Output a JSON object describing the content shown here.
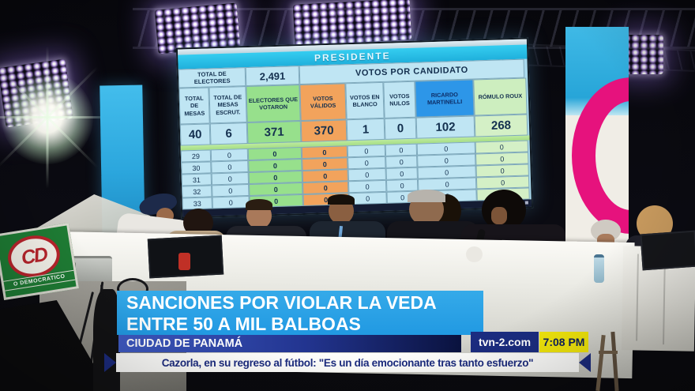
{
  "projection": {
    "title": "PRESIDENTE",
    "subtitle": "VOTOS POR CANDIDATO",
    "total_electores_label": "TOTAL DE ELECTORES",
    "total_electores_value": "2,491",
    "columns": [
      "TOTAL DE MESAS",
      "TOTAL DE MESAS ESCRUT.",
      "ELECTORES QUE VOTARON",
      "VOTOS VÁLIDOS",
      "VOTOS EN BLANCO",
      "VOTOS NULOS",
      "RICARDO MARTINELLI",
      "RÓMULO ROUX"
    ],
    "totals_row": [
      "40",
      "6",
      "371",
      "370",
      "1",
      "0",
      "102",
      "268"
    ],
    "detail_rows": [
      [
        "29",
        "0",
        "0",
        "0",
        "0",
        "0",
        "0",
        "0"
      ],
      [
        "30",
        "0",
        "0",
        "0",
        "0",
        "0",
        "0",
        "0"
      ],
      [
        "31",
        "0",
        "0",
        "0",
        "0",
        "0",
        "0",
        "0"
      ],
      [
        "32",
        "0",
        "0",
        "0",
        "0",
        "0",
        "0",
        "0"
      ],
      [
        "33",
        "0",
        "0",
        "0",
        "0",
        "0",
        "0",
        "0"
      ]
    ]
  },
  "broadcast": {
    "lower_third": {
      "headline_line1": "SANCIONES POR VIOLAR LA VEDA",
      "headline_line2": "ENTRE 50 A MIL BALBOAS",
      "location": "CIUDAD DE PANAMÁ"
    },
    "ticker": {
      "text": "Cazorla, en su regreso al fútbol: \"Es un día emocionante tras tanto esfuerzo\""
    },
    "branding": {
      "website": "tvn-2.com",
      "time": "7:08 PM"
    }
  },
  "signage": {
    "party_initials": "CD",
    "party_text": "O DEMOCRATICO"
  },
  "colors": {
    "banner_blue": "#2aa2e6",
    "location_navy": "#22348f",
    "time_yellow": "#f2e70c",
    "table_green": "#97e08c",
    "table_orange": "#f2a35c",
    "martinelli_blue": "#2d96e8",
    "roux_green": "#cdeebf",
    "presidente_cyan": "#25c3ec",
    "banner_pink": "#e6127d"
  }
}
